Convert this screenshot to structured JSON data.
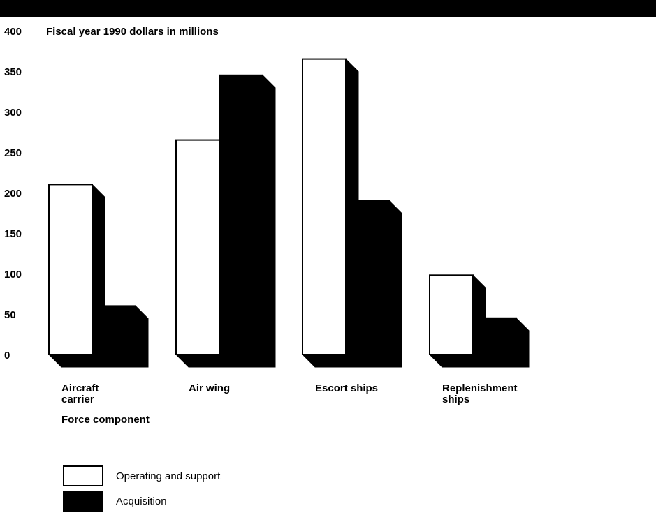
{
  "chart_data": {
    "type": "bar",
    "ylabel": "Fiscal year 1990 dollars in millions",
    "xlabel": "Force component",
    "ylim": [
      0,
      400
    ],
    "yticks": [
      "0",
      "50",
      "100",
      "150",
      "200",
      "250",
      "300",
      "350",
      "400"
    ],
    "categories": [
      "Aircraft carrier",
      "Air wing",
      "Escort ships",
      "Replenishment ships"
    ],
    "series": [
      {
        "name": "Operating and support",
        "values": [
          210,
          265,
          365,
          98
        ],
        "color": "#ffffff"
      },
      {
        "name": "Acquisition",
        "values": [
          60,
          345,
          190,
          45
        ],
        "color": "#000000"
      }
    ],
    "legend_position": "bottom-left",
    "grid": false,
    "style": "3d"
  }
}
